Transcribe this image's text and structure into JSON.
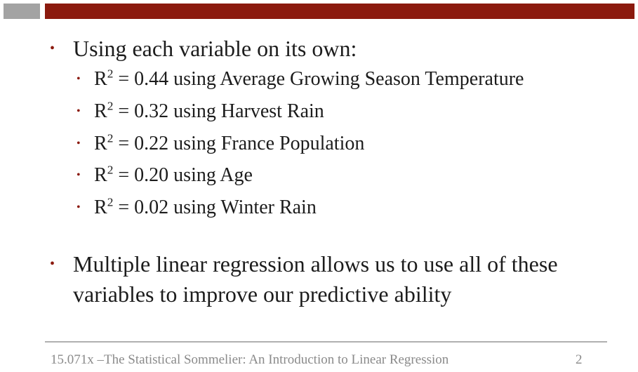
{
  "slide": {
    "bullets": [
      {
        "text": "Using each variable on its own:",
        "sub": [
          {
            "prefix": "R",
            "sup": "2",
            "text": " = 0.44 using Average Growing Season Temperature"
          },
          {
            "prefix": "R",
            "sup": "2",
            "text": " = 0.32 using Harvest Rain"
          },
          {
            "prefix": "R",
            "sup": "2",
            "text": " = 0.22 using France Population"
          },
          {
            "prefix": "R",
            "sup": "2",
            "text": " = 0.20 using Age"
          },
          {
            "prefix": "R",
            "sup": "2",
            "text": " = 0.02 using Winter Rain"
          }
        ]
      },
      {
        "line1": "Multiple linear regression allows us to use all of  these",
        "line2": "variables to improve our predictive ability"
      }
    ]
  },
  "footer": {
    "text": "15.071x –The Statistical Sommelier: An Introduction to Linear Regression",
    "page": "2"
  },
  "colors": {
    "accent": "#8b1a0e",
    "gray_bar": "#a3a3a3",
    "footer_text": "#8a8a8a"
  }
}
